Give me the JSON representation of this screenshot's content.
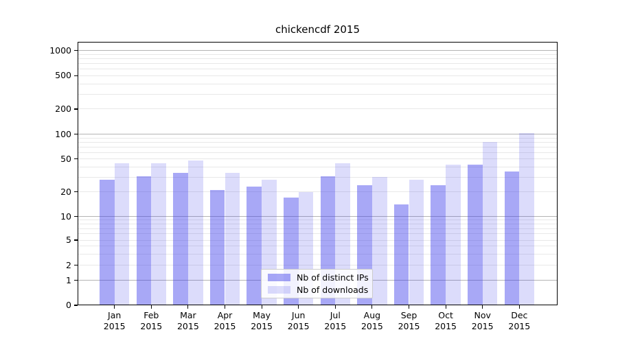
{
  "chart_data": {
    "type": "bar",
    "title": "chickencdf 2015",
    "categories": [
      "Jan",
      "Feb",
      "Mar",
      "Apr",
      "May",
      "Jun",
      "Jul",
      "Aug",
      "Sep",
      "Oct",
      "Nov",
      "Dec"
    ],
    "category_year": "2015",
    "series": [
      {
        "name": "Nb of distinct IPs",
        "color": "rgba(62,62,235,0.45)",
        "values": [
          28,
          31,
          34,
          21,
          23,
          17,
          31,
          24,
          14,
          24,
          43,
          35
        ]
      },
      {
        "name": "Nb of downloads",
        "color": "rgba(62,62,235,0.18)",
        "values": [
          44,
          44,
          48,
          34,
          28,
          20,
          44,
          30,
          28,
          43,
          81,
          103
        ]
      }
    ],
    "ylabel": "",
    "xlabel": "",
    "yscale": "symlog",
    "ylim": [
      0,
      1265
    ],
    "y_ticks": [
      1000,
      500,
      200,
      100,
      50,
      20,
      10,
      5,
      2,
      1,
      0
    ],
    "y_major_gridlines": [
      1,
      10,
      100,
      1000
    ],
    "y_minor_gridlines": [
      2,
      3,
      4,
      5,
      6,
      7,
      8,
      9,
      20,
      30,
      40,
      50,
      60,
      70,
      80,
      90,
      200,
      300,
      400,
      500,
      600,
      700,
      800,
      900
    ],
    "grid": true,
    "legend_position": "lower center",
    "bar_colors": {
      "distinct_ips": "rgba(62,62,235,0.45)",
      "downloads": "rgba(62,62,235,0.18)"
    }
  }
}
